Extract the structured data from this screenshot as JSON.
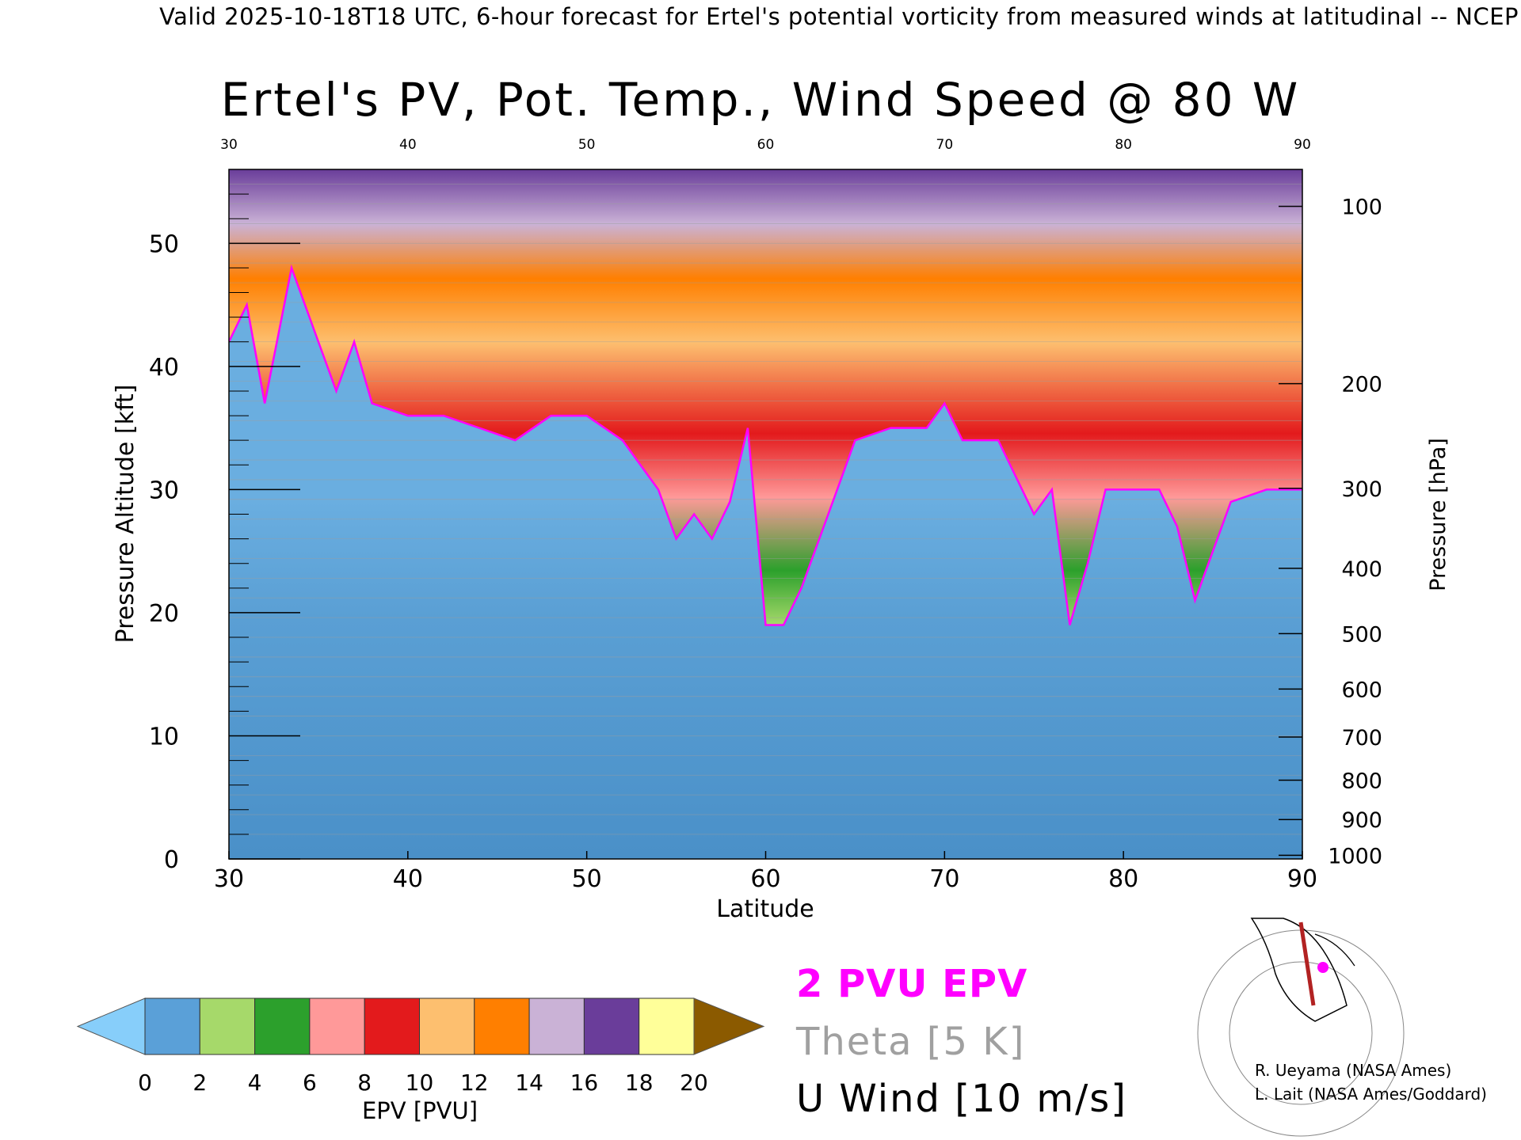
{
  "header": "Valid 2025-10-18T18 UTC, 6-hour forecast for Ertel's potential vorticity from measured winds at latitudinal -- NCEP",
  "chart_data": {
    "type": "heatmap",
    "title": "Ertel's PV, Pot. Temp., Wind Speed @ 80 W",
    "xlabel": "Latitude",
    "ylabel": "Pressure Altitude [kft]",
    "y2label": "Pressure [hPa]",
    "xlim": [
      30,
      90
    ],
    "ylim": [
      0,
      56
    ],
    "x_ticks": [
      30,
      40,
      50,
      60,
      70,
      80,
      90
    ],
    "y_ticks": [
      0,
      10,
      20,
      30,
      40,
      50
    ],
    "pressure_ticks": [
      {
        "hpa": "100",
        "kft": 53.0
      },
      {
        "hpa": "200",
        "kft": 38.6
      },
      {
        "hpa": "300",
        "kft": 30.1
      },
      {
        "hpa": "400",
        "kft": 23.6
      },
      {
        "hpa": "500",
        "kft": 18.3
      },
      {
        "hpa": "600",
        "kft": 13.8
      },
      {
        "hpa": "700",
        "kft": 9.9
      },
      {
        "hpa": "800",
        "kft": 6.4
      },
      {
        "hpa": "900",
        "kft": 3.2
      },
      {
        "hpa": "1000",
        "kft": 0.3
      }
    ],
    "tropopause_2pvu": [
      {
        "lat": 30,
        "kft": 42
      },
      {
        "lat": 31,
        "kft": 45
      },
      {
        "lat": 32,
        "kft": 37
      },
      {
        "lat": 33.5,
        "kft": 48
      },
      {
        "lat": 35,
        "kft": 42
      },
      {
        "lat": 36,
        "kft": 38
      },
      {
        "lat": 37,
        "kft": 42
      },
      {
        "lat": 38,
        "kft": 37
      },
      {
        "lat": 40,
        "kft": 36
      },
      {
        "lat": 42,
        "kft": 36
      },
      {
        "lat": 44,
        "kft": 35
      },
      {
        "lat": 46,
        "kft": 34
      },
      {
        "lat": 48,
        "kft": 36
      },
      {
        "lat": 50,
        "kft": 36
      },
      {
        "lat": 52,
        "kft": 34
      },
      {
        "lat": 54,
        "kft": 30
      },
      {
        "lat": 55,
        "kft": 26
      },
      {
        "lat": 56,
        "kft": 28
      },
      {
        "lat": 57,
        "kft": 26
      },
      {
        "lat": 58,
        "kft": 29
      },
      {
        "lat": 59,
        "kft": 35
      },
      {
        "lat": 60,
        "kft": 19
      },
      {
        "lat": 61,
        "kft": 19
      },
      {
        "lat": 62,
        "kft": 22
      },
      {
        "lat": 64,
        "kft": 30
      },
      {
        "lat": 65,
        "kft": 34
      },
      {
        "lat": 67,
        "kft": 35
      },
      {
        "lat": 69,
        "kft": 35
      },
      {
        "lat": 70,
        "kft": 37
      },
      {
        "lat": 71,
        "kft": 34
      },
      {
        "lat": 73,
        "kft": 34
      },
      {
        "lat": 75,
        "kft": 28
      },
      {
        "lat": 76,
        "kft": 30
      },
      {
        "lat": 77,
        "kft": 19
      },
      {
        "lat": 78,
        "kft": 24
      },
      {
        "lat": 79,
        "kft": 30
      },
      {
        "lat": 82,
        "kft": 30
      },
      {
        "lat": 83,
        "kft": 27
      },
      {
        "lat": 84,
        "kft": 21
      },
      {
        "lat": 85,
        "kft": 25
      },
      {
        "lat": 86,
        "kft": 29
      },
      {
        "lat": 88,
        "kft": 30
      },
      {
        "lat": 90,
        "kft": 30
      }
    ],
    "colorbar": {
      "label": "EPV [PVU]",
      "ticks": [
        0,
        2,
        4,
        6,
        8,
        10,
        12,
        14,
        16,
        18,
        20
      ],
      "colors": [
        "#5aa0d8",
        "#a6d96a",
        "#2ca02c",
        "#ff9999",
        "#e31a1c",
        "#fdbf6f",
        "#ff7f00",
        "#cab2d6",
        "#6a3d9a",
        "#ffff99",
        "#8b5a00"
      ],
      "under_color": "#87cefa",
      "over_color": "#8b5a00"
    }
  },
  "legend": {
    "pv": "2 PVU EPV",
    "theta": "Theta [5 K]",
    "wind": "U Wind [10 m/s]",
    "pv_color": "#ff00ff",
    "theta_color": "#a0a0a0"
  },
  "credits": {
    "line1": "R. Ueyama (NASA Ames)",
    "line2": "L. Lait (NASA Ames/Goddard)"
  }
}
